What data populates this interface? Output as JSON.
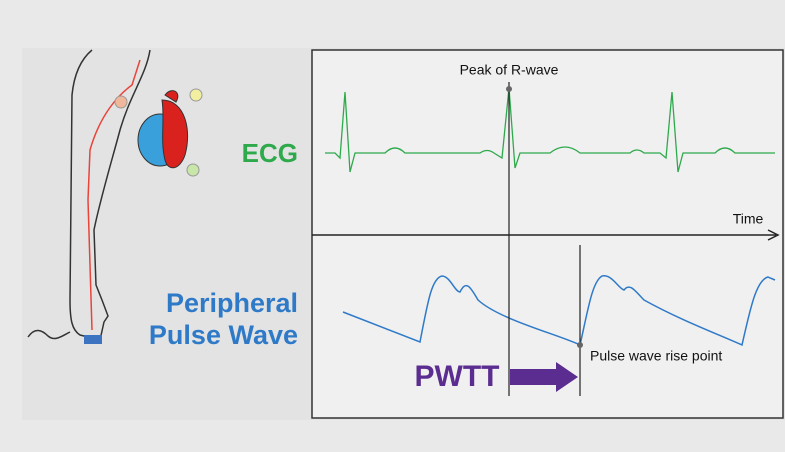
{
  "labels": {
    "peak": "Peak of R-wave",
    "ecg": "ECG",
    "time": "Time",
    "peripheral": "Peripheral",
    "pulse_wave": "Pulse Wave",
    "pwtt": "PWTT",
    "rise_point": "Pulse wave rise point"
  }
}
